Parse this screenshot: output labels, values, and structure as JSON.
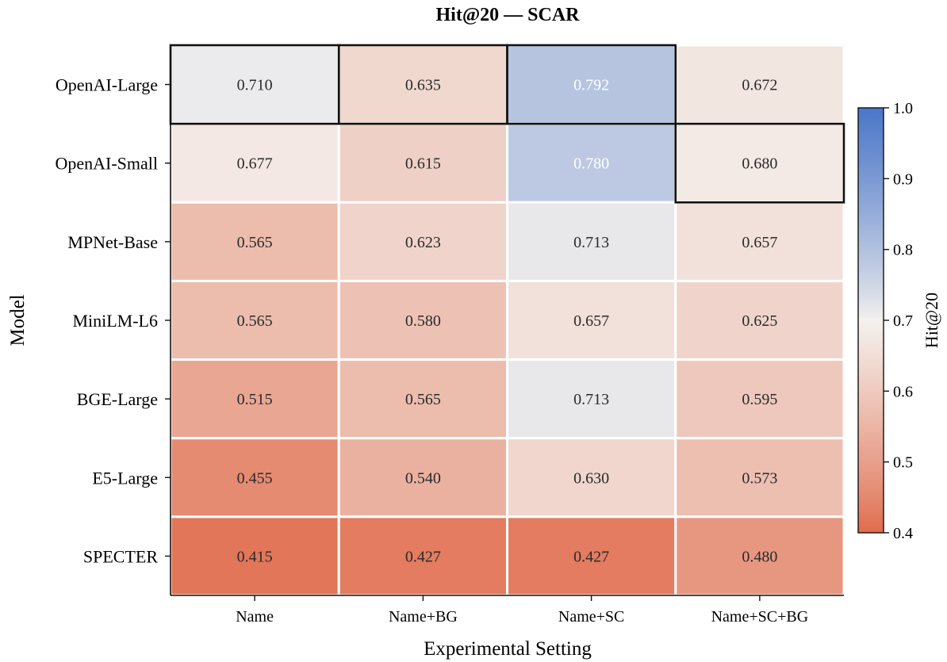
{
  "chart_data": {
    "type": "heatmap",
    "title": "Hit@20 — SCAR",
    "xlabel": "Experimental Setting",
    "ylabel": "Model",
    "x_categories": [
      "Name",
      "Name+BG",
      "Name+SC",
      "Name+SC+BG"
    ],
    "y_categories": [
      "OpenAI-Large",
      "OpenAI-Small",
      "MPNet-Base",
      "MiniLM-L6",
      "BGE-Large",
      "E5-Large",
      "SPECTER"
    ],
    "values": [
      [
        0.71,
        0.635,
        0.792,
        0.672
      ],
      [
        0.677,
        0.615,
        0.78,
        0.68
      ],
      [
        0.565,
        0.623,
        0.713,
        0.657
      ],
      [
        0.565,
        0.58,
        0.657,
        0.625
      ],
      [
        0.515,
        0.565,
        0.713,
        0.595
      ],
      [
        0.455,
        0.54,
        0.63,
        0.573
      ],
      [
        0.415,
        0.427,
        0.427,
        0.48
      ]
    ],
    "cell_labels": [
      [
        "0.710",
        "0.635",
        "0.792",
        "0.672"
      ],
      [
        "0.677",
        "0.615",
        "0.780",
        "0.680"
      ],
      [
        "0.565",
        "0.623",
        "0.713",
        "0.657"
      ],
      [
        "0.565",
        "0.580",
        "0.657",
        "0.625"
      ],
      [
        "0.515",
        "0.565",
        "0.713",
        "0.595"
      ],
      [
        "0.455",
        "0.540",
        "0.630",
        "0.573"
      ],
      [
        "0.415",
        "0.427",
        "0.427",
        "0.480"
      ]
    ],
    "highlighted_best": [
      {
        "row": 0,
        "col": 0
      },
      {
        "row": 0,
        "col": 1
      },
      {
        "row": 0,
        "col": 2
      },
      {
        "row": 1,
        "col": 3
      }
    ],
    "colorbar": {
      "label": "Hit@20",
      "vmin": 0.4,
      "vmax": 1.0,
      "ticks": [
        0.4,
        0.5,
        0.6,
        0.7,
        0.8,
        0.9,
        1.0
      ],
      "tick_labels": [
        "0.4",
        "0.5",
        "0.6",
        "0.7",
        "0.8",
        "0.9",
        "1.0"
      ],
      "colormap": "coolwarm-diverging",
      "color_low": "#e06b4b",
      "color_mid": "#f4f1ee",
      "color_high": "#4a76c8"
    }
  }
}
